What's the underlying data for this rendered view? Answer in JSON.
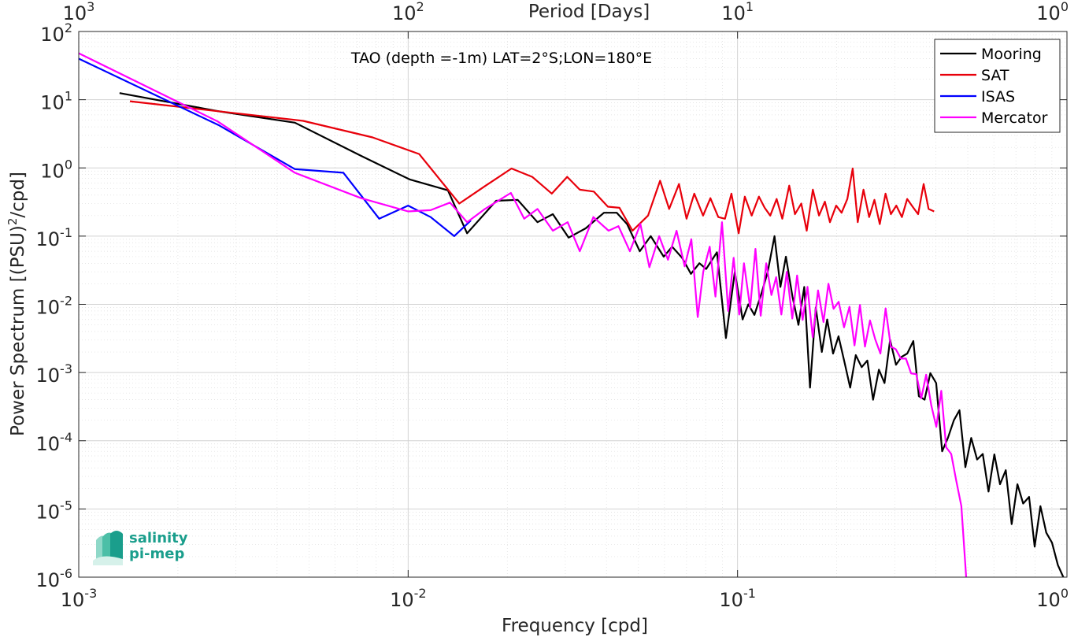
{
  "chart_data": {
    "type": "line",
    "title": "TAO (depth =-1m) LAT=2°S;LON=180°E",
    "xlabel": "Frequency [cpd]",
    "ylabel_main": "Power Spectrum [(PSU)",
    "ylabel_sup": "2",
    "ylabel_tail": "/cpd]",
    "top_axis_label": "Period [Days]",
    "x_scale": "log",
    "y_scale": "log",
    "xlim": [
      0.001,
      1
    ],
    "ylim": [
      1e-06,
      100
    ],
    "grid": true,
    "legend_position": "top-right",
    "x_ticks": [
      {
        "value": 0.001,
        "base": "10",
        "exp": "-3"
      },
      {
        "value": 0.01,
        "base": "10",
        "exp": "-2"
      },
      {
        "value": 0.1,
        "base": "10",
        "exp": "-1"
      },
      {
        "value": 1,
        "base": "10",
        "exp": "0"
      }
    ],
    "y_ticks": [
      {
        "value": 100,
        "base": "10",
        "exp": "2"
      },
      {
        "value": 10,
        "base": "10",
        "exp": "1"
      },
      {
        "value": 1,
        "base": "10",
        "exp": "0"
      },
      {
        "value": 0.1,
        "base": "10",
        "exp": "-1"
      },
      {
        "value": 0.01,
        "base": "10",
        "exp": "-2"
      },
      {
        "value": 0.001,
        "base": "10",
        "exp": "-3"
      },
      {
        "value": 0.0001,
        "base": "10",
        "exp": "-4"
      },
      {
        "value": 1e-05,
        "base": "10",
        "exp": "-5"
      },
      {
        "value": 1e-06,
        "base": "10",
        "exp": "-6"
      }
    ],
    "top_ticks": [
      {
        "value": 0.001,
        "base": "10",
        "exp": "3"
      },
      {
        "value": 0.01,
        "base": "10",
        "exp": "2"
      },
      {
        "value": 0.1,
        "base": "10",
        "exp": "1"
      },
      {
        "value": 1,
        "base": "10",
        "exp": "0"
      }
    ],
    "series": [
      {
        "name": "Mooring",
        "color": "#000000",
        "x": [
          0.00133,
          0.00264,
          0.00453,
          0.0072,
          0.0101,
          0.0132,
          0.0151,
          0.0185,
          0.0215,
          0.0247,
          0.0275,
          0.0307,
          0.0346,
          0.0393,
          0.043,
          0.0462,
          0.0505,
          0.0545,
          0.0597,
          0.0633,
          0.0679,
          0.0722,
          0.0766,
          0.0803,
          0.0866,
          0.0922,
          0.0981,
          0.1036,
          0.1078,
          0.1125,
          0.1185,
          0.1235,
          0.1295,
          0.1349,
          0.1402,
          0.1468,
          0.1531,
          0.1594,
          0.166,
          0.1728,
          0.1802,
          0.1871,
          0.195,
          0.2026,
          0.2106,
          0.2198,
          0.2285,
          0.2381,
          0.2478,
          0.2579,
          0.2687,
          0.2794,
          0.2905,
          0.3027,
          0.3147,
          0.3275,
          0.3416,
          0.3552,
          0.3697,
          0.3849,
          0.4009,
          0.4179,
          0.4351,
          0.4536,
          0.4718,
          0.4917,
          0.5121,
          0.5336,
          0.5551,
          0.5779,
          0.6019,
          0.6265,
          0.652,
          0.6794,
          0.7074,
          0.7364,
          0.7674,
          0.798,
          0.8307,
          0.8654,
          0.9007,
          0.9387,
          0.975
        ],
        "y": [
          12.5,
          6.8,
          4.6,
          1.5,
          0.68,
          0.47,
          0.11,
          0.33,
          0.34,
          0.16,
          0.21,
          0.095,
          0.13,
          0.22,
          0.22,
          0.15,
          0.06,
          0.1,
          0.05,
          0.07,
          0.048,
          0.028,
          0.04,
          0.033,
          0.058,
          0.0032,
          0.03,
          0.006,
          0.01,
          0.007,
          0.015,
          0.03,
          0.1,
          0.018,
          0.05,
          0.013,
          0.005,
          0.018,
          0.0006,
          0.009,
          0.002,
          0.006,
          0.0019,
          0.0034,
          0.0015,
          0.0006,
          0.0018,
          0.0012,
          0.0015,
          0.0004,
          0.0011,
          0.0007,
          0.003,
          0.0013,
          0.0017,
          0.0019,
          0.0029,
          0.00045,
          0.0004,
          0.00098,
          0.0007,
          7e-05,
          0.00011,
          0.0002,
          0.00028,
          4.1e-05,
          0.00011,
          5.3e-05,
          6.4e-05,
          1.8e-05,
          6.3e-05,
          2.3e-05,
          3.7e-05,
          6e-06,
          2.3e-05,
          1.2e-05,
          1.5e-05,
          2.8e-06,
          1.1e-05,
          4.5e-06,
          3.2e-06,
          1.5e-06,
          9e-07
        ]
      },
      {
        "name": "SAT",
        "color": "#e8000b",
        "x": [
          0.00143,
          0.0048,
          0.0078,
          0.0108,
          0.0143,
          0.0172,
          0.0206,
          0.0238,
          0.0273,
          0.0304,
          0.0332,
          0.0366,
          0.0404,
          0.0438,
          0.048,
          0.0535,
          0.0582,
          0.062,
          0.0664,
          0.07,
          0.0739,
          0.0786,
          0.0827,
          0.0874,
          0.0916,
          0.0958,
          0.1008,
          0.1052,
          0.1104,
          0.1161,
          0.1209,
          0.1257,
          0.1314,
          0.1367,
          0.1435,
          0.1494,
          0.1561,
          0.1622,
          0.1693,
          0.1767,
          0.1842,
          0.1908,
          0.1992,
          0.2069,
          0.2154,
          0.2236,
          0.2317,
          0.2411,
          0.2509,
          0.2604,
          0.2702,
          0.2813,
          0.292,
          0.3034,
          0.3154,
          0.3274,
          0.34,
          0.3533,
          0.3673,
          0.3801,
          0.3952
        ],
        "y": [
          9.5,
          4.9,
          2.8,
          1.6,
          0.3,
          0.55,
          0.98,
          0.74,
          0.42,
          0.74,
          0.48,
          0.45,
          0.27,
          0.26,
          0.12,
          0.2,
          0.65,
          0.25,
          0.58,
          0.18,
          0.42,
          0.2,
          0.36,
          0.19,
          0.18,
          0.42,
          0.11,
          0.38,
          0.2,
          0.38,
          0.26,
          0.2,
          0.35,
          0.18,
          0.55,
          0.21,
          0.3,
          0.12,
          0.48,
          0.2,
          0.32,
          0.16,
          0.28,
          0.22,
          0.35,
          0.98,
          0.16,
          0.48,
          0.19,
          0.34,
          0.15,
          0.42,
          0.21,
          0.28,
          0.19,
          0.35,
          0.27,
          0.21,
          0.58,
          0.25,
          0.23
        ]
      },
      {
        "name": "ISAS",
        "color": "#0000ff",
        "x": [
          0.001,
          0.00267,
          0.00453,
          0.00636,
          0.00817,
          0.01,
          0.0117,
          0.0138,
          0.0155
        ],
        "y": [
          40,
          4.2,
          0.96,
          0.85,
          0.18,
          0.28,
          0.19,
          0.1,
          0.17
        ]
      },
      {
        "name": "Mercator",
        "color": "#ff00ff",
        "x": [
          0.001,
          0.00264,
          0.00453,
          0.0072,
          0.01,
          0.0117,
          0.0134,
          0.0151,
          0.0171,
          0.0205,
          0.0225,
          0.0247,
          0.0275,
          0.0305,
          0.0332,
          0.0365,
          0.0406,
          0.0435,
          0.0471,
          0.0507,
          0.054,
          0.0578,
          0.0615,
          0.0653,
          0.0691,
          0.0724,
          0.0757,
          0.0787,
          0.0823,
          0.0857,
          0.0897,
          0.0937,
          0.0973,
          0.1012,
          0.1046,
          0.1092,
          0.1133,
          0.1176,
          0.1222,
          0.1267,
          0.131,
          0.1358,
          0.1411,
          0.1466,
          0.1516,
          0.1576,
          0.1631,
          0.1691,
          0.1755,
          0.1823,
          0.1888,
          0.1957,
          0.2028,
          0.2105,
          0.2187,
          0.2265,
          0.2352,
          0.2437,
          0.2524,
          0.2616,
          0.2715,
          0.2815,
          0.2919,
          0.3022,
          0.3132,
          0.3245,
          0.3364,
          0.3487,
          0.3612,
          0.3738,
          0.3873,
          0.4012,
          0.4154,
          0.4299,
          0.4452,
          0.4613,
          0.4781,
          0.4943
        ],
        "y": [
          48,
          4.8,
          0.85,
          0.36,
          0.23,
          0.24,
          0.31,
          0.16,
          0.25,
          0.43,
          0.18,
          0.25,
          0.12,
          0.16,
          0.06,
          0.19,
          0.12,
          0.14,
          0.06,
          0.15,
          0.035,
          0.1,
          0.045,
          0.12,
          0.036,
          0.09,
          0.0065,
          0.03,
          0.07,
          0.013,
          0.16,
          0.008,
          0.048,
          0.0071,
          0.04,
          0.0089,
          0.065,
          0.0068,
          0.04,
          0.0137,
          0.025,
          0.0071,
          0.03,
          0.0062,
          0.0265,
          0.0059,
          0.018,
          0.0033,
          0.016,
          0.0055,
          0.02,
          0.0086,
          0.0109,
          0.0046,
          0.0092,
          0.0025,
          0.0098,
          0.0024,
          0.0058,
          0.0031,
          0.0019,
          0.0087,
          0.0024,
          0.0022,
          0.0016,
          0.0016,
          0.00097,
          0.00095,
          0.00042,
          0.00093,
          0.00033,
          0.00016,
          0.00054,
          8e-05,
          6.4e-05,
          2.6e-05,
          1.1e-05,
          6e-07
        ]
      }
    ]
  },
  "logo": {
    "line1": "salinity",
    "line2": "pi-mep"
  }
}
